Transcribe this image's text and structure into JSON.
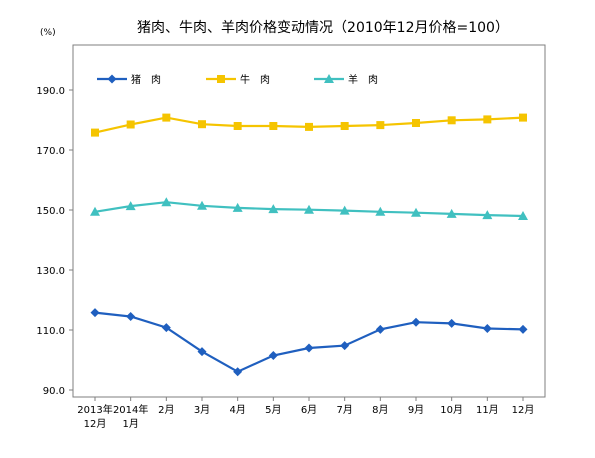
{
  "chart_data": {
    "type": "line",
    "title": "猪肉、牛肉、羊肉价格变动情况（2010年12月价格=100）",
    "unit_label": "(%)",
    "ylim": [
      90,
      200
    ],
    "yticks": [
      "90.0",
      "110.0",
      "130.0",
      "150.0",
      "170.0",
      "190.0"
    ],
    "categories": [
      [
        "2013年",
        "12月"
      ],
      [
        "2014年",
        "1月"
      ],
      [
        "2月"
      ],
      [
        "3月"
      ],
      [
        "4月"
      ],
      [
        "5月"
      ],
      [
        "6月"
      ],
      [
        "7月"
      ],
      [
        "8月"
      ],
      [
        "9月"
      ],
      [
        "10月"
      ],
      [
        "11月"
      ],
      [
        "12月"
      ]
    ],
    "grid": false,
    "legend_position": "top-left",
    "series": [
      {
        "name": "猪　肉",
        "color": "#1f5fbf",
        "marker": "diamond",
        "values": [
          115.8,
          114.5,
          110.8,
          102.8,
          96.1,
          101.5,
          104.0,
          104.8,
          110.2,
          112.6,
          112.2,
          110.5,
          110.2
        ]
      },
      {
        "name": "牛　肉",
        "color": "#f5c400",
        "marker": "square",
        "values": [
          175.8,
          178.5,
          180.8,
          178.6,
          178.0,
          178.0,
          177.7,
          178.0,
          178.3,
          179.0,
          179.9,
          180.2,
          180.8
        ]
      },
      {
        "name": "羊　肉",
        "color": "#40c0c0",
        "marker": "triangle",
        "values": [
          149.4,
          151.3,
          152.6,
          151.4,
          150.7,
          150.3,
          150.1,
          149.8,
          149.4,
          149.1,
          148.7,
          148.3,
          148.0
        ]
      }
    ]
  }
}
